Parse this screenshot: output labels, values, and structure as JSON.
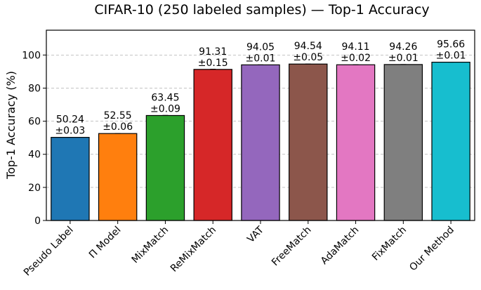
{
  "chart_data": {
    "type": "bar",
    "title": "CIFAR-10 (250 labeled samples) — Top-1 Accuracy",
    "xlabel": "",
    "ylabel": "Top-1 Accuracy (%)",
    "ylim": [
      0,
      115
    ],
    "yticks": [
      0,
      20,
      40,
      60,
      80,
      100
    ],
    "grid": "y-dashed",
    "categories": [
      "Pseudo Label",
      "Π Model",
      "MixMatch",
      "ReMixMatch",
      "VAT",
      "FreeMatch",
      "AdaMatch",
      "FixMatch",
      "Our Method"
    ],
    "values": [
      50.24,
      52.55,
      63.45,
      91.31,
      94.05,
      94.54,
      94.11,
      94.26,
      95.66
    ],
    "errors": [
      0.03,
      0.06,
      0.09,
      0.15,
      0.01,
      0.05,
      0.02,
      0.01,
      0.01
    ],
    "value_labels": [
      "50.24",
      "52.55",
      "63.45",
      "91.31",
      "94.05",
      "94.54",
      "94.11",
      "94.26",
      "95.66"
    ],
    "error_labels": [
      "±0.03",
      "±0.06",
      "±0.09",
      "±0.15",
      "±0.01",
      "±0.05",
      "±0.02",
      "±0.01",
      "±0.01"
    ],
    "colors": [
      "#1f77b4",
      "#ff7f0e",
      "#2ca02c",
      "#d62728",
      "#9467bd",
      "#8c564b",
      "#e377c2",
      "#7f7f7f",
      "#17becf"
    ]
  }
}
